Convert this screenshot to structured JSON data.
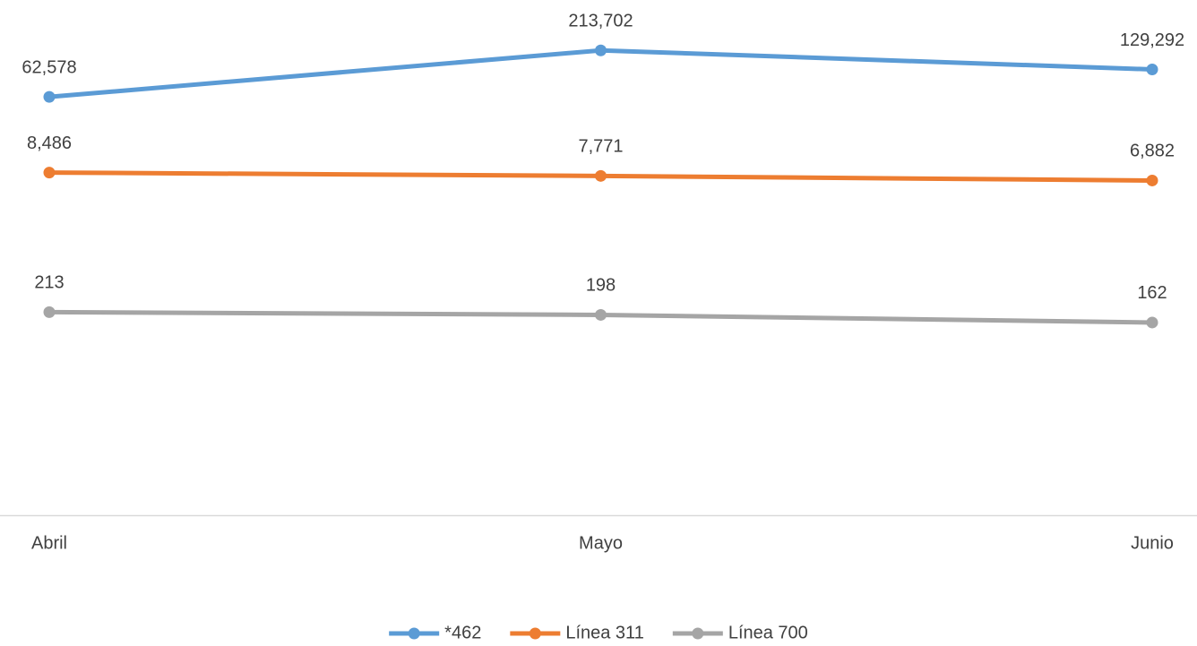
{
  "chart_data": {
    "type": "line",
    "categories": [
      "Abril",
      "Mayo",
      "Junio"
    ],
    "log": true,
    "ylim": [
      1,
      1000000
    ],
    "legend": "bottom",
    "series": [
      {
        "name": "*462",
        "color": "#5b9bd5",
        "values": [
          62578,
          213702,
          129292
        ],
        "value_labels": [
          "62,578",
          "213,702",
          "129,292"
        ]
      },
      {
        "name": "Línea 311",
        "color": "#ed7d31",
        "values": [
          8486,
          7771,
          6882
        ],
        "value_labels": [
          "8,486",
          "7,771",
          "6,882"
        ]
      },
      {
        "name": "Línea 700",
        "color": "#a5a5a5",
        "values": [
          213,
          198,
          162
        ],
        "value_labels": [
          "213",
          "198",
          "162"
        ]
      }
    ]
  }
}
